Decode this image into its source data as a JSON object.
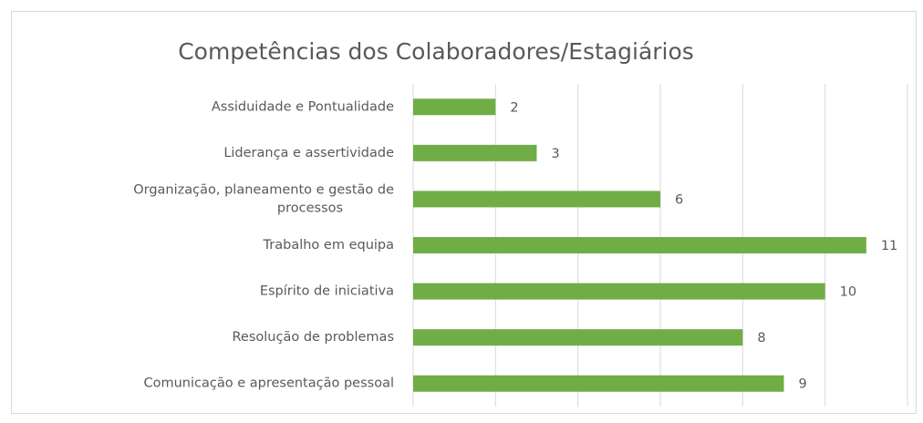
{
  "chart_data": {
    "type": "bar",
    "orientation": "horizontal",
    "title": "Competências dos Colaboradores/Estagiários",
    "categories": [
      "Assiduidade e Pontualidade",
      "Liderança e assertividade",
      "Organização, planeamento e gestão de processos",
      "Trabalho em equipa",
      "Espírito de iniciativa",
      "Resolução de problemas",
      "Comunicação e apresentação pessoal"
    ],
    "values": [
      2,
      3,
      6,
      11,
      10,
      8,
      9
    ],
    "color": "#70ad47",
    "xlim": [
      0,
      12
    ],
    "xticks": [
      0,
      2,
      4,
      6,
      8,
      10,
      12
    ],
    "grid": true
  }
}
